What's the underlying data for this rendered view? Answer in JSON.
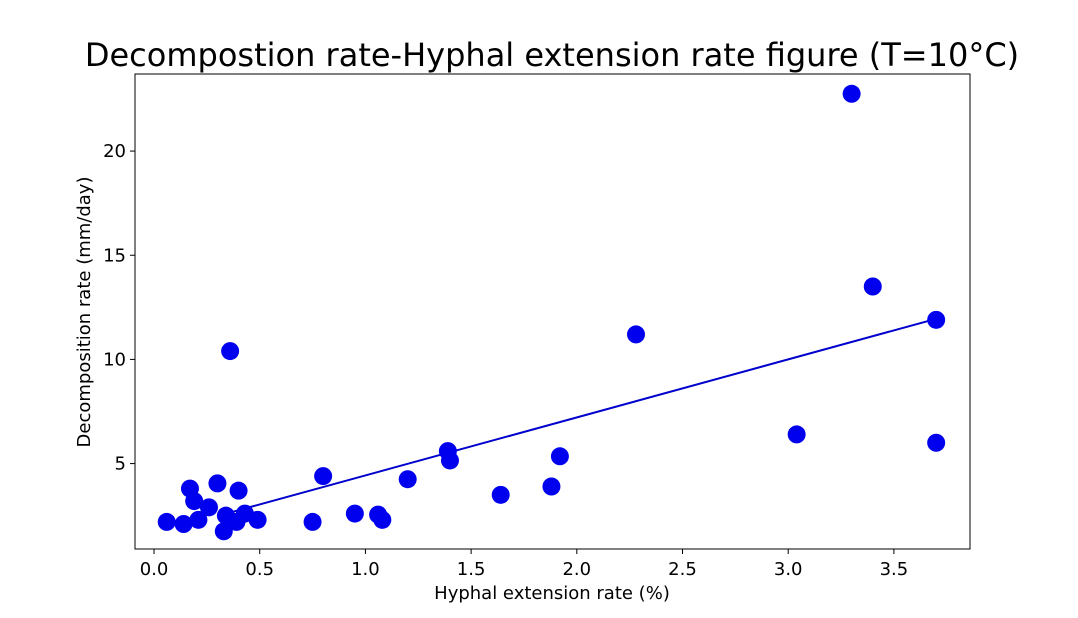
{
  "chart_data": {
    "type": "scatter",
    "title": "Decompostion rate-Hyphal extension rate figure (T=10°C)",
    "xlabel": "Hyphal extension rate (%)",
    "ylabel": "Decomposition rate (mm/day)",
    "xlim": [
      -0.09,
      3.86
    ],
    "ylim": [
      0.9,
      23.7
    ],
    "xticks": [
      0.0,
      0.5,
      1.0,
      1.5,
      2.0,
      2.5,
      3.0,
      3.5
    ],
    "xtick_labels": [
      "0.0",
      "0.5",
      "1.0",
      "1.5",
      "2.0",
      "2.5",
      "3.0",
      "3.5"
    ],
    "yticks": [
      5,
      10,
      15,
      20
    ],
    "ytick_labels": [
      "5",
      "10",
      "15",
      "20"
    ],
    "grid": false,
    "marker_color": "#0000ee",
    "line_color": "#0000cc",
    "series": [
      {
        "points": [
          {
            "x": 0.06,
            "y": 2.2
          },
          {
            "x": 0.14,
            "y": 2.1
          },
          {
            "x": 0.17,
            "y": 3.8
          },
          {
            "x": 0.19,
            "y": 3.2
          },
          {
            "x": 0.21,
            "y": 2.3
          },
          {
            "x": 0.26,
            "y": 2.9
          },
          {
            "x": 0.3,
            "y": 4.05
          },
          {
            "x": 0.33,
            "y": 1.75
          },
          {
            "x": 0.34,
            "y": 2.5
          },
          {
            "x": 0.36,
            "y": 10.4
          },
          {
            "x": 0.4,
            "y": 3.7
          },
          {
            "x": 0.43,
            "y": 2.6
          },
          {
            "x": 0.39,
            "y": 2.2
          },
          {
            "x": 0.49,
            "y": 2.3
          },
          {
            "x": 0.75,
            "y": 2.2
          },
          {
            "x": 0.8,
            "y": 4.4
          },
          {
            "x": 0.95,
            "y": 2.6
          },
          {
            "x": 1.06,
            "y": 2.55
          },
          {
            "x": 1.08,
            "y": 2.3
          },
          {
            "x": 1.2,
            "y": 4.25
          },
          {
            "x": 1.39,
            "y": 5.6
          },
          {
            "x": 1.4,
            "y": 5.15
          },
          {
            "x": 1.64,
            "y": 3.5
          },
          {
            "x": 1.88,
            "y": 3.9
          },
          {
            "x": 1.92,
            "y": 5.35
          },
          {
            "x": 2.28,
            "y": 11.2
          },
          {
            "x": 3.04,
            "y": 6.4
          },
          {
            "x": 3.3,
            "y": 22.75
          },
          {
            "x": 3.4,
            "y": 13.5
          },
          {
            "x": 3.7,
            "y": 11.9
          },
          {
            "x": 3.7,
            "y": 6.0
          }
        ]
      }
    ],
    "fit_line": {
      "x": [
        0.36,
        3.7
      ],
      "y": [
        2.65,
        11.95
      ]
    }
  }
}
